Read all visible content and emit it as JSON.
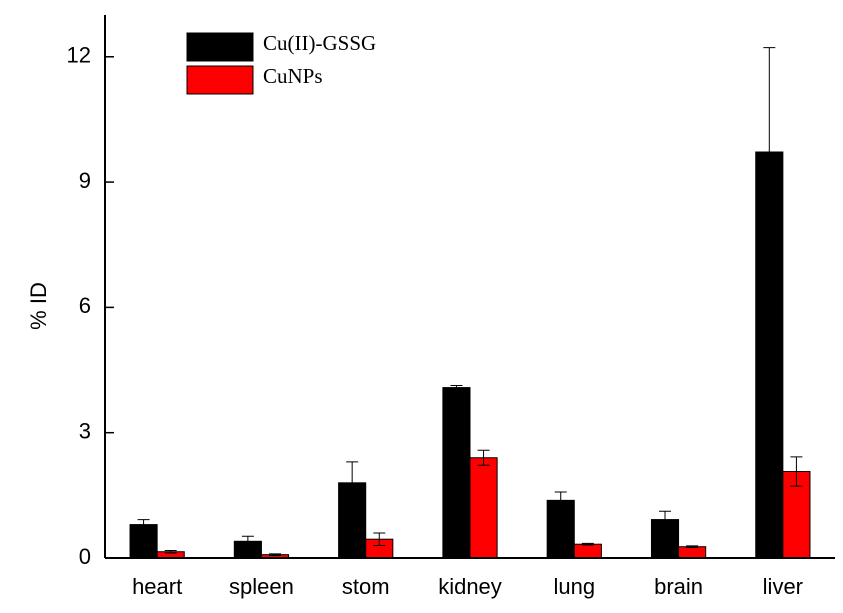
{
  "chart_data": {
    "type": "bar",
    "ylabel": "% ID",
    "categories": [
      "heart",
      "spleen",
      "stom",
      "kidney",
      "lung",
      "brain",
      "liver"
    ],
    "series": [
      {
        "name": "Cu(II)-GSSG",
        "color": "#000000",
        "values": [
          0.8,
          0.4,
          1.8,
          4.08,
          1.38,
          0.92,
          9.72
        ],
        "errors": [
          0.12,
          0.12,
          0.5,
          0.05,
          0.2,
          0.2,
          2.5
        ]
      },
      {
        "name": "CuNPs",
        "color": "#ff0000",
        "values": [
          0.15,
          0.08,
          0.45,
          2.4,
          0.33,
          0.27,
          2.07
        ],
        "errors": [
          0.03,
          0.02,
          0.15,
          0.18,
          0.02,
          0.02,
          0.35
        ]
      }
    ],
    "ylim": [
      0,
      13
    ],
    "yticks": [
      0,
      3,
      6,
      9,
      12
    ],
    "grid": false,
    "legend": "upper left"
  }
}
